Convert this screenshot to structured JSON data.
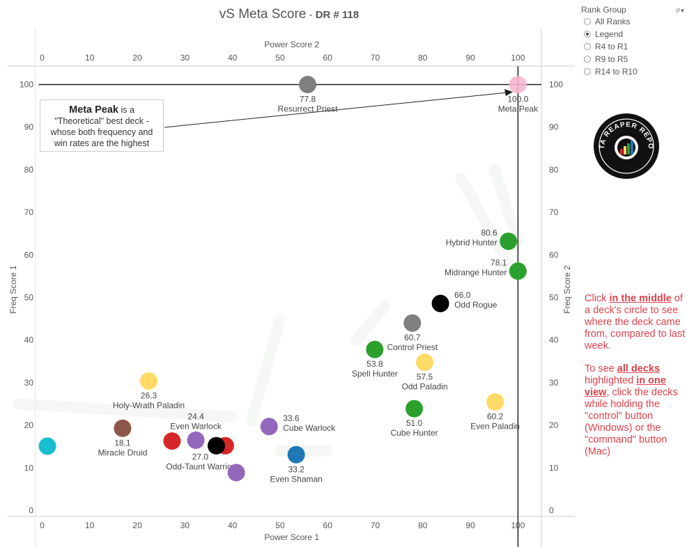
{
  "title": {
    "main": "vS Meta Score",
    "separator": " - ",
    "sub": "DR # 118"
  },
  "filter": {
    "title": "Rank Group",
    "search_icon": "search-icon",
    "options": [
      {
        "label": "All Ranks",
        "selected": false
      },
      {
        "label": "Legend",
        "selected": true
      },
      {
        "label": "R4 to R1",
        "selected": false
      },
      {
        "label": "R9 to R5",
        "selected": false
      },
      {
        "label": "R14 to R10",
        "selected": false
      }
    ]
  },
  "annotation": {
    "bold": "Meta Peak",
    "line1_rest": " is a",
    "line2": "\"Theoretical\" best deck -",
    "line3": "whose both frequency and",
    "line4": "win rates are the highest"
  },
  "help": {
    "p1_a": "Click ",
    "p1_b": "in the middle",
    "p1_c": " of a deck's circle to see where the deck came from, compared to last week.",
    "p2_a": "To see ",
    "p2_b": "all decks",
    "p2_c": " highlighted ",
    "p2_d": "in one view",
    "p2_e": ", click the decks while holding the \"control\" button (Windows) or the \"command\" button (Mac)"
  },
  "logo": {
    "text": "DATA REAPER REPORT",
    "icon": "data-reaper-logo"
  },
  "colors": {
    "green": "#2ca02c",
    "gray": "#7f7f7f",
    "black": "#000000",
    "yellow": "#ffd966",
    "purple": "#9467bd",
    "red": "#d62728",
    "brown": "#8c564b",
    "blue": "#1f77b4",
    "cyan": "#17becf",
    "pink": "#f7b6d2",
    "help_text": "#e0424b"
  },
  "chart_data": {
    "type": "scatter",
    "xlabel": "Power Score 1",
    "x2label": "Power Score 2",
    "ylabel": "Freq Score 1",
    "y2label": "Freq Score 2",
    "xlim": [
      0,
      105
    ],
    "ylim": [
      -1,
      105
    ],
    "xticks": [
      0,
      10,
      20,
      30,
      40,
      50,
      60,
      70,
      80,
      90,
      100
    ],
    "yticks": [
      0,
      10,
      20,
      30,
      40,
      50,
      60,
      70,
      80,
      90,
      100
    ],
    "grid": false,
    "reference_lines": {
      "x": 100,
      "y": 100
    },
    "points": [
      {
        "name": "Meta Peak",
        "score": "100.0",
        "x": 100,
        "y": 100,
        "color": "pink"
      },
      {
        "name": "Resurrect Priest",
        "score": "77.8",
        "x": 55.8,
        "y": 100,
        "color": "gray"
      },
      {
        "name": "Hybrid Hunter",
        "score": "80.6",
        "x": 98,
        "y": 63.2,
        "color": "green"
      },
      {
        "name": "Midrange Hunter",
        "score": "78.1",
        "x": 100,
        "y": 56.2,
        "color": "green"
      },
      {
        "name": "Odd Rogue",
        "score": "66.0",
        "x": 83.7,
        "y": 48.6,
        "color": "black"
      },
      {
        "name": "Control Priest",
        "score": "60.7",
        "x": 77.8,
        "y": 44,
        "color": "gray"
      },
      {
        "name": "Spell Hunter",
        "score": "53.8",
        "x": 69.9,
        "y": 37.8,
        "color": "green"
      },
      {
        "name": "Odd Paladin",
        "score": "57.5",
        "x": 80.4,
        "y": 34.8,
        "color": "yellow"
      },
      {
        "name": "Cube Hunter",
        "score": "51.0",
        "x": 78.2,
        "y": 23.9,
        "color": "green"
      },
      {
        "name": "Even Paladin",
        "score": "60.2",
        "x": 95.2,
        "y": 25.5,
        "color": "yellow"
      },
      {
        "name": "Holy-Wrath Paladin",
        "score": "26.3",
        "x": 22.4,
        "y": 30.4,
        "color": "yellow"
      },
      {
        "name": "Miracle Druid",
        "score": "18.1",
        "x": 16.9,
        "y": 19.3,
        "color": "brown"
      },
      {
        "name": "Even Warlock",
        "score": "24.4",
        "x": 32.3,
        "y": 16.5,
        "color": "purple"
      },
      {
        "name": "Odd-Taunt Warrior",
        "score": "27.0",
        "x": 38.5,
        "y": 15.2,
        "color": "red"
      },
      {
        "name": "Cube Warlock",
        "score": "33.6",
        "x": 47.7,
        "y": 19.7,
        "color": "purple"
      },
      {
        "name": "Even Shaman",
        "score": "33.2",
        "x": 53.4,
        "y": 13.1,
        "color": "blue"
      },
      {
        "name": "",
        "score": "",
        "x": 27.3,
        "y": 16.3,
        "color": "red"
      },
      {
        "name": "",
        "score": "",
        "x": 36.6,
        "y": 15.2,
        "color": "black"
      },
      {
        "name": "",
        "score": "",
        "x": 40.8,
        "y": 8.9,
        "color": "purple"
      },
      {
        "name": "",
        "score": "",
        "x": 1.1,
        "y": 15.1,
        "color": "cyan"
      }
    ]
  }
}
